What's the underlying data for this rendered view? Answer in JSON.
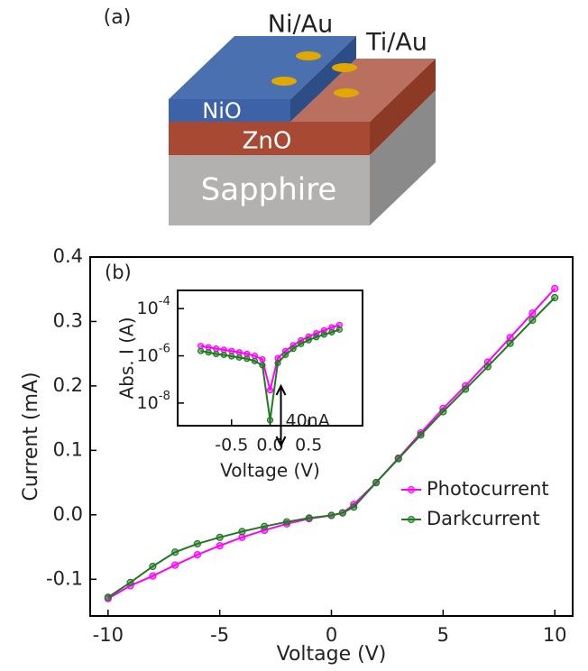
{
  "diagram": {
    "label": "(a)",
    "contacts": [
      "Ni/Au",
      "Ti/Au"
    ],
    "layers": [
      "NiO",
      "ZnO",
      "Sapphire"
    ]
  },
  "chart_data": [
    {
      "type": "line",
      "label": "(b)",
      "x_label": "Voltage (V)",
      "y_label": "Current (mA)",
      "x": [
        -10,
        -9,
        -8,
        -7,
        -6,
        -5,
        -4,
        -3,
        -2,
        -1,
        0,
        0.5,
        1,
        2,
        3,
        4,
        5,
        6,
        7,
        8,
        9,
        10
      ],
      "series": [
        {
          "name": "Photocurrent",
          "color": "#ff00ff",
          "values": [
            -0.13,
            -0.11,
            -0.095,
            -0.078,
            -0.062,
            -0.048,
            -0.035,
            -0.024,
            -0.014,
            -0.006,
            -0.001,
            0.003,
            0.016,
            0.05,
            0.088,
            0.127,
            0.165,
            0.2,
            0.237,
            0.275,
            0.313,
            0.351
          ]
        },
        {
          "name": "Darkcurrent",
          "color": "#1f7a1f",
          "values": [
            -0.128,
            -0.105,
            -0.08,
            -0.058,
            -0.045,
            -0.035,
            -0.026,
            -0.018,
            -0.011,
            -0.005,
            -0.001,
            0.003,
            0.012,
            0.05,
            0.087,
            0.124,
            0.16,
            0.195,
            0.23,
            0.266,
            0.302,
            0.337
          ]
        }
      ],
      "xlim": [
        -10.8,
        10.8
      ],
      "ylim": [
        -0.157,
        0.4
      ],
      "xticks": [
        -10,
        -5,
        0,
        5,
        10
      ],
      "yticks": [
        -0.1,
        {
          "value": 0,
          "label": "0.0"
        },
        0.1,
        0.2,
        0.3,
        0.4
      ],
      "legend": "lower right",
      "markers": true
    },
    {
      "type": "line",
      "x_label": "Voltage (V)",
      "y_label": "Abs. I (A)",
      "y_log": true,
      "annotation": "40nA",
      "x": [
        -0.9,
        -0.8,
        -0.7,
        -0.6,
        -0.5,
        -0.4,
        -0.3,
        -0.2,
        -0.1,
        0,
        0.1,
        0.2,
        0.3,
        0.4,
        0.5,
        0.6,
        0.7,
        0.8,
        0.9
      ],
      "series": [
        {
          "name": "Photocurrent",
          "color": "#ff00ff",
          "values": [
            2.6e-06,
            2.3e-06,
            2e-06,
            1.8e-06,
            1.6e-06,
            1.4e-06,
            1.2e-06,
            1e-06,
            7e-07,
            3.5e-08,
            8e-07,
            1.6e-06,
            2.8e-06,
            4.5e-06,
            6.5e-06,
            9e-06,
            1.2e-05,
            1.6e-05,
            2e-05
          ]
        },
        {
          "name": "Darkcurrent",
          "color": "#1f7a1f",
          "values": [
            1.6e-06,
            1.4e-06,
            1.2e-06,
            1.1e-06,
            9.5e-07,
            8.5e-07,
            7.5e-07,
            6e-07,
            4e-07,
            1.9e-09,
            5e-07,
            1.1e-06,
            2e-06,
            3.2e-06,
            4.6e-06,
            6.2e-06,
            8e-06,
            1e-05,
            1.3e-05
          ]
        }
      ],
      "xlim": [
        -1.2,
        1.2
      ],
      "ylim": [
        1.1e-09,
        0.00059
      ],
      "xticks": [
        -0.5,
        {
          "value": 0,
          "label": "0.0"
        },
        0.5
      ],
      "yticks": [
        {
          "value": 1e-08,
          "label": "10-8"
        },
        {
          "value": 1e-06,
          "label": "10-6"
        },
        {
          "value": 0.0001,
          "label": "10-4"
        }
      ],
      "markers": true
    }
  ]
}
